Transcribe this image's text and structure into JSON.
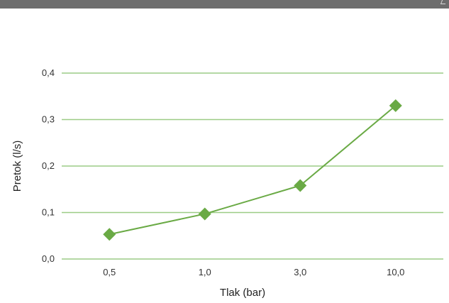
{
  "chart_data": {
    "type": "line",
    "xlabel": "Tlak (bar)",
    "ylabel": "Pretok (l/s)",
    "categories": [
      "0,5",
      "1,0",
      "3,0",
      "10,0"
    ],
    "series": [
      {
        "values": [
          0.053,
          0.097,
          0.158,
          0.33
        ]
      }
    ],
    "y_ticks": [
      "0,0",
      "0,1",
      "0,2",
      "0,3",
      "0,4"
    ],
    "ylim": [
      0,
      0.4
    ],
    "grid": true,
    "colors": {
      "line": "#6aaa45",
      "marker": "#6aaa45",
      "grid": "#9ccc86"
    }
  }
}
